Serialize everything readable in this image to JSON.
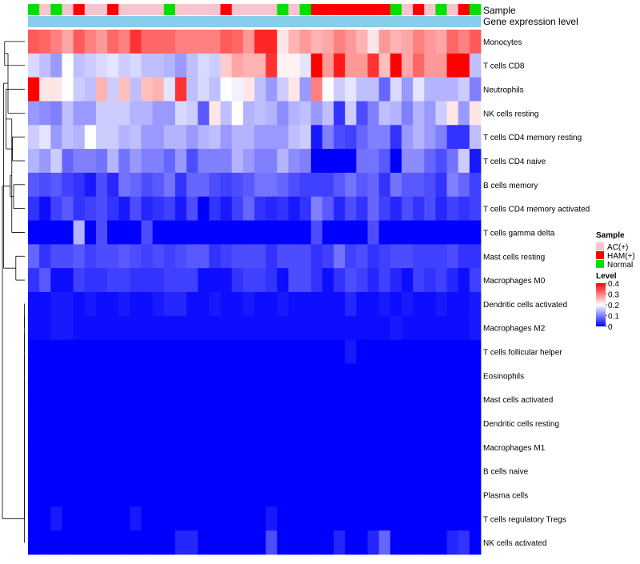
{
  "chart_data": {
    "type": "heatmap",
    "title": "",
    "annotation_row_label": "Sample",
    "expression_row_label": "Gene expression level",
    "legend": {
      "sample_title": "Sample",
      "sample_entries": [
        {
          "label": "AC(+)",
          "color": "#f8c4d0"
        },
        {
          "label": "HAM(+)",
          "color": "#ff0000"
        },
        {
          "label": "Normal",
          "color": "#00e000"
        }
      ],
      "level_title": "Level",
      "level_ticks": [
        "0.4",
        "0.3",
        "0.2",
        "0.1",
        "0"
      ],
      "level_range": [
        0,
        0.4
      ]
    },
    "colors": {
      "low": "#0000ff",
      "mid": "#ffffff",
      "high": "#ff0000",
      "expression_bar": "#87ceeb"
    },
    "samples": [
      "Normal",
      "AC(+)",
      "Normal",
      "AC(+)",
      "HAM(+)",
      "AC(+)",
      "AC(+)",
      "HAM(+)",
      "AC(+)",
      "AC(+)",
      "AC(+)",
      "AC(+)",
      "Normal",
      "AC(+)",
      "AC(+)",
      "AC(+)",
      "AC(+)",
      "HAM(+)",
      "AC(+)",
      "AC(+)",
      "AC(+)",
      "AC(+)",
      "Normal",
      "AC(+)",
      "Normal",
      "HAM(+)",
      "HAM(+)",
      "HAM(+)",
      "HAM(+)",
      "HAM(+)",
      "HAM(+)",
      "HAM(+)",
      "Normal",
      "AC(+)",
      "HAM(+)",
      "AC(+)",
      "Normal",
      "AC(+)",
      "HAM(+)",
      "Normal"
    ],
    "rows": [
      "Monocytes",
      "T cells CD8",
      "Neutrophils",
      "NK cells resting",
      "T cells CD4 memory resting",
      "T cells CD4 naive",
      "B cells memory",
      "T cells CD4 memory activated",
      "T cells gamma delta",
      "Mast cells resting",
      "Macrophages M0",
      "Dendritic cells activated",
      "Macrophages M2",
      "T cells follicular helper",
      "Eosinophils",
      "Mast cells activated",
      "Dendritic cells resting",
      "Macrophages M1",
      "B cells naive",
      "Plasma cells",
      "T cells regulatory  Tregs",
      "NK cells activated"
    ],
    "matrix": [
      [
        0.33,
        0.32,
        0.3,
        0.27,
        0.33,
        0.3,
        0.28,
        0.32,
        0.3,
        0.36,
        0.32,
        0.32,
        0.32,
        0.3,
        0.3,
        0.3,
        0.3,
        0.33,
        0.32,
        0.28,
        0.37,
        0.37,
        0.22,
        0.26,
        0.28,
        0.26,
        0.27,
        0.3,
        0.28,
        0.26,
        0.22,
        0.28,
        0.26,
        0.27,
        0.3,
        0.28,
        0.27,
        0.32,
        0.3,
        0.33
      ],
      [
        0.17,
        0.15,
        0.12,
        0.2,
        0.15,
        0.16,
        0.17,
        0.18,
        0.16,
        0.17,
        0.15,
        0.15,
        0.14,
        0.12,
        0.15,
        0.17,
        0.16,
        0.24,
        0.27,
        0.26,
        0.26,
        0.36,
        0.21,
        0.21,
        0.18,
        0.4,
        0.28,
        0.38,
        0.28,
        0.28,
        0.36,
        0.25,
        0.4,
        0.27,
        0.32,
        0.28,
        0.28,
        0.4,
        0.4,
        0.15
      ],
      [
        0.4,
        0.22,
        0.22,
        0.2,
        0.16,
        0.15,
        0.26,
        0.16,
        0.25,
        0.15,
        0.25,
        0.26,
        0.18,
        0.36,
        0.15,
        0.17,
        0.15,
        0.2,
        0.19,
        0.22,
        0.15,
        0.12,
        0.16,
        0.22,
        0.12,
        0.3,
        0.2,
        0.16,
        0.18,
        0.15,
        0.15,
        0.08,
        0.17,
        0.12,
        0.18,
        0.14,
        0.14,
        0.14,
        0.16,
        0.1
      ],
      [
        0.12,
        0.11,
        0.1,
        0.15,
        0.12,
        0.12,
        0.16,
        0.16,
        0.16,
        0.14,
        0.14,
        0.12,
        0.12,
        0.17,
        0.16,
        0.07,
        0.22,
        0.15,
        0.2,
        0.14,
        0.15,
        0.14,
        0.11,
        0.14,
        0.15,
        0.12,
        0.15,
        0.04,
        0.16,
        0.06,
        0.1,
        0.15,
        0.14,
        0.1,
        0.14,
        0.12,
        0.16,
        0.22,
        0.12,
        0.22
      ],
      [
        0.16,
        0.18,
        0.12,
        0.15,
        0.14,
        0.2,
        0.16,
        0.16,
        0.14,
        0.15,
        0.12,
        0.12,
        0.14,
        0.14,
        0.12,
        0.14,
        0.15,
        0.12,
        0.14,
        0.14,
        0.12,
        0.12,
        0.12,
        0.15,
        0.16,
        0.02,
        0.1,
        0.06,
        0.05,
        0.08,
        0.1,
        0.1,
        0.04,
        0.12,
        0.14,
        0.12,
        0.1,
        0.04,
        0.04,
        0.15
      ],
      [
        0.14,
        0.12,
        0.16,
        0.08,
        0.1,
        0.1,
        0.09,
        0.14,
        0.09,
        0.12,
        0.1,
        0.1,
        0.08,
        0.12,
        0.06,
        0.1,
        0.1,
        0.1,
        0.14,
        0.12,
        0.1,
        0.1,
        0.14,
        0.11,
        0.1,
        0.0,
        0.0,
        0.0,
        0.0,
        0.09,
        0.09,
        0.07,
        0.0,
        0.11,
        0.11,
        0.08,
        0.06,
        0.09,
        0.16,
        0.02
      ],
      [
        0.07,
        0.06,
        0.07,
        0.05,
        0.04,
        0.02,
        0.06,
        0.03,
        0.09,
        0.08,
        0.06,
        0.07,
        0.09,
        0.04,
        0.08,
        0.08,
        0.06,
        0.05,
        0.06,
        0.07,
        0.09,
        0.09,
        0.08,
        0.06,
        0.05,
        0.05,
        0.05,
        0.07,
        0.09,
        0.07,
        0.08,
        0.04,
        0.09,
        0.07,
        0.07,
        0.06,
        0.04,
        0.1,
        0.08,
        0.05
      ],
      [
        0.04,
        0.01,
        0.05,
        0.07,
        0.04,
        0.05,
        0.06,
        0.04,
        0.02,
        0.06,
        0.03,
        0.04,
        0.05,
        0.02,
        0.06,
        0.0,
        0.04,
        0.02,
        0.05,
        0.08,
        0.04,
        0.03,
        0.04,
        0.02,
        0.04,
        0.1,
        0.07,
        0.03,
        0.06,
        0.04,
        0.08,
        0.05,
        0.03,
        0.06,
        0.04,
        0.06,
        0.03,
        0.05,
        0.04,
        0.05
      ],
      [
        0.0,
        0.0,
        0.0,
        0.0,
        0.14,
        0.0,
        0.06,
        0.0,
        0.0,
        0.0,
        0.06,
        0.0,
        0.0,
        0.0,
        0.0,
        0.0,
        0.0,
        0.0,
        0.0,
        0.0,
        0.0,
        0.0,
        0.0,
        0.0,
        0.0,
        0.06,
        0.0,
        0.0,
        0.0,
        0.0,
        0.06,
        0.0,
        0.0,
        0.0,
        0.0,
        0.0,
        0.0,
        0.0,
        0.0,
        0.0
      ],
      [
        0.08,
        0.04,
        0.06,
        0.06,
        0.07,
        0.05,
        0.06,
        0.06,
        0.07,
        0.06,
        0.05,
        0.06,
        0.05,
        0.06,
        0.07,
        0.07,
        0.04,
        0.05,
        0.06,
        0.06,
        0.06,
        0.04,
        0.06,
        0.06,
        0.06,
        0.04,
        0.05,
        0.09,
        0.05,
        0.06,
        0.04,
        0.05,
        0.06,
        0.06,
        0.05,
        0.05,
        0.05,
        0.06,
        0.04,
        0.04
      ],
      [
        0.04,
        0.07,
        0.01,
        0.01,
        0.05,
        0.04,
        0.04,
        0.05,
        0.05,
        0.04,
        0.04,
        0.04,
        0.05,
        0.05,
        0.05,
        0.01,
        0.01,
        0.01,
        0.04,
        0.05,
        0.05,
        0.04,
        0.01,
        0.06,
        0.06,
        0.04,
        0.01,
        0.04,
        0.06,
        0.05,
        0.03,
        0.05,
        0.03,
        0.01,
        0.05,
        0.04,
        0.05,
        0.03,
        0.01,
        0.05
      ],
      [
        0.01,
        0.01,
        0.02,
        0.02,
        0.01,
        0.02,
        0.01,
        0.01,
        0.02,
        0.01,
        0.01,
        0.02,
        0.03,
        0.03,
        0.01,
        0.01,
        0.02,
        0.01,
        0.01,
        0.02,
        0.01,
        0.01,
        0.02,
        0.01,
        0.01,
        0.01,
        0.01,
        0.01,
        0.03,
        0.01,
        0.01,
        0.02,
        0.01,
        0.02,
        0.01,
        0.01,
        0.02,
        0.01,
        0.01,
        0.02
      ],
      [
        0.01,
        0.01,
        0.02,
        0.02,
        0.01,
        0.01,
        0.01,
        0.01,
        0.01,
        0.01,
        0.01,
        0.01,
        0.01,
        0.01,
        0.01,
        0.01,
        0.01,
        0.01,
        0.01,
        0.01,
        0.01,
        0.01,
        0.01,
        0.01,
        0.01,
        0.01,
        0.01,
        0.01,
        0.01,
        0.01,
        0.01,
        0.01,
        0.02,
        0.01,
        0.01,
        0.01,
        0.01,
        0.01,
        0.01,
        0.02
      ],
      [
        0.0,
        0.0,
        0.0,
        0.0,
        0.0,
        0.0,
        0.0,
        0.0,
        0.0,
        0.0,
        0.0,
        0.0,
        0.0,
        0.0,
        0.0,
        0.0,
        0.0,
        0.0,
        0.0,
        0.0,
        0.0,
        0.0,
        0.0,
        0.0,
        0.0,
        0.0,
        0.0,
        0.0,
        0.02,
        0.0,
        0.0,
        0.0,
        0.0,
        0.0,
        0.0,
        0.0,
        0.0,
        0.0,
        0.0,
        0.0
      ],
      [
        0.0,
        0.0,
        0.0,
        0.0,
        0.0,
        0.0,
        0.0,
        0.0,
        0.0,
        0.0,
        0.0,
        0.0,
        0.0,
        0.0,
        0.0,
        0.0,
        0.0,
        0.0,
        0.0,
        0.0,
        0.0,
        0.0,
        0.0,
        0.0,
        0.0,
        0.0,
        0.0,
        0.0,
        0.0,
        0.0,
        0.0,
        0.0,
        0.0,
        0.0,
        0.0,
        0.0,
        0.0,
        0.0,
        0.0,
        0.0
      ],
      [
        0.0,
        0.0,
        0.0,
        0.0,
        0.0,
        0.0,
        0.0,
        0.0,
        0.0,
        0.0,
        0.0,
        0.0,
        0.0,
        0.0,
        0.0,
        0.0,
        0.0,
        0.0,
        0.0,
        0.0,
        0.0,
        0.0,
        0.0,
        0.0,
        0.0,
        0.0,
        0.0,
        0.0,
        0.0,
        0.0,
        0.0,
        0.0,
        0.0,
        0.0,
        0.0,
        0.0,
        0.0,
        0.0,
        0.0,
        0.0
      ],
      [
        0.0,
        0.0,
        0.0,
        0.0,
        0.0,
        0.0,
        0.0,
        0.0,
        0.0,
        0.0,
        0.0,
        0.0,
        0.0,
        0.0,
        0.0,
        0.0,
        0.0,
        0.0,
        0.0,
        0.0,
        0.0,
        0.0,
        0.0,
        0.0,
        0.0,
        0.0,
        0.0,
        0.0,
        0.0,
        0.0,
        0.0,
        0.0,
        0.0,
        0.0,
        0.0,
        0.0,
        0.0,
        0.0,
        0.0,
        0.0
      ],
      [
        0.0,
        0.0,
        0.0,
        0.0,
        0.0,
        0.0,
        0.0,
        0.0,
        0.0,
        0.0,
        0.0,
        0.0,
        0.0,
        0.0,
        0.0,
        0.0,
        0.0,
        0.0,
        0.0,
        0.0,
        0.0,
        0.0,
        0.0,
        0.0,
        0.0,
        0.0,
        0.0,
        0.0,
        0.0,
        0.0,
        0.0,
        0.0,
        0.0,
        0.0,
        0.0,
        0.0,
        0.0,
        0.0,
        0.0,
        0.0
      ],
      [
        0.0,
        0.0,
        0.0,
        0.0,
        0.0,
        0.0,
        0.0,
        0.0,
        0.0,
        0.0,
        0.0,
        0.0,
        0.0,
        0.0,
        0.0,
        0.0,
        0.0,
        0.0,
        0.0,
        0.0,
        0.0,
        0.0,
        0.0,
        0.0,
        0.0,
        0.0,
        0.0,
        0.0,
        0.0,
        0.0,
        0.0,
        0.0,
        0.0,
        0.0,
        0.0,
        0.0,
        0.0,
        0.0,
        0.0,
        0.0
      ],
      [
        0.0,
        0.0,
        0.0,
        0.0,
        0.0,
        0.0,
        0.0,
        0.0,
        0.0,
        0.0,
        0.0,
        0.0,
        0.0,
        0.0,
        0.0,
        0.0,
        0.0,
        0.0,
        0.0,
        0.0,
        0.0,
        0.0,
        0.0,
        0.0,
        0.0,
        0.0,
        0.0,
        0.0,
        0.0,
        0.0,
        0.0,
        0.0,
        0.0,
        0.0,
        0.0,
        0.0,
        0.0,
        0.0,
        0.0,
        0.0
      ],
      [
        0.0,
        0.0,
        0.02,
        0.0,
        0.0,
        0.0,
        0.0,
        0.0,
        0.0,
        0.02,
        0.0,
        0.0,
        0.0,
        0.0,
        0.0,
        0.0,
        0.0,
        0.0,
        0.0,
        0.0,
        0.0,
        0.02,
        0.0,
        0.0,
        0.0,
        0.0,
        0.0,
        0.0,
        0.0,
        0.0,
        0.0,
        0.0,
        0.0,
        0.0,
        0.0,
        0.0,
        0.0,
        0.0,
        0.0,
        0.0
      ],
      [
        0.0,
        0.0,
        0.0,
        0.0,
        0.0,
        0.0,
        0.0,
        0.0,
        0.0,
        0.0,
        0.0,
        0.0,
        0.0,
        0.03,
        0.03,
        0.0,
        0.0,
        0.0,
        0.0,
        0.0,
        0.0,
        0.06,
        0.0,
        0.0,
        0.0,
        0.0,
        0.0,
        0.03,
        0.0,
        0.0,
        0.03,
        0.08,
        0.0,
        0.0,
        0.0,
        0.0,
        0.0,
        0.03,
        0.04,
        0.0
      ]
    ],
    "row_dendrogram": {
      "merges": [
        [
          0,
          1,
          0.9
        ],
        [
          4,
          5,
          0.55
        ],
        [
          3,
          22,
          0.75
        ],
        [
          2,
          23,
          0.84
        ],
        [
          6,
          7,
          0.5
        ],
        [
          8,
          25,
          0.58
        ],
        [
          9,
          10,
          0.4
        ],
        [
          26,
          27,
          0.65
        ],
        [
          24,
          28,
          0.95
        ],
        [
          21,
          29,
          1.0
        ]
      ]
    }
  }
}
